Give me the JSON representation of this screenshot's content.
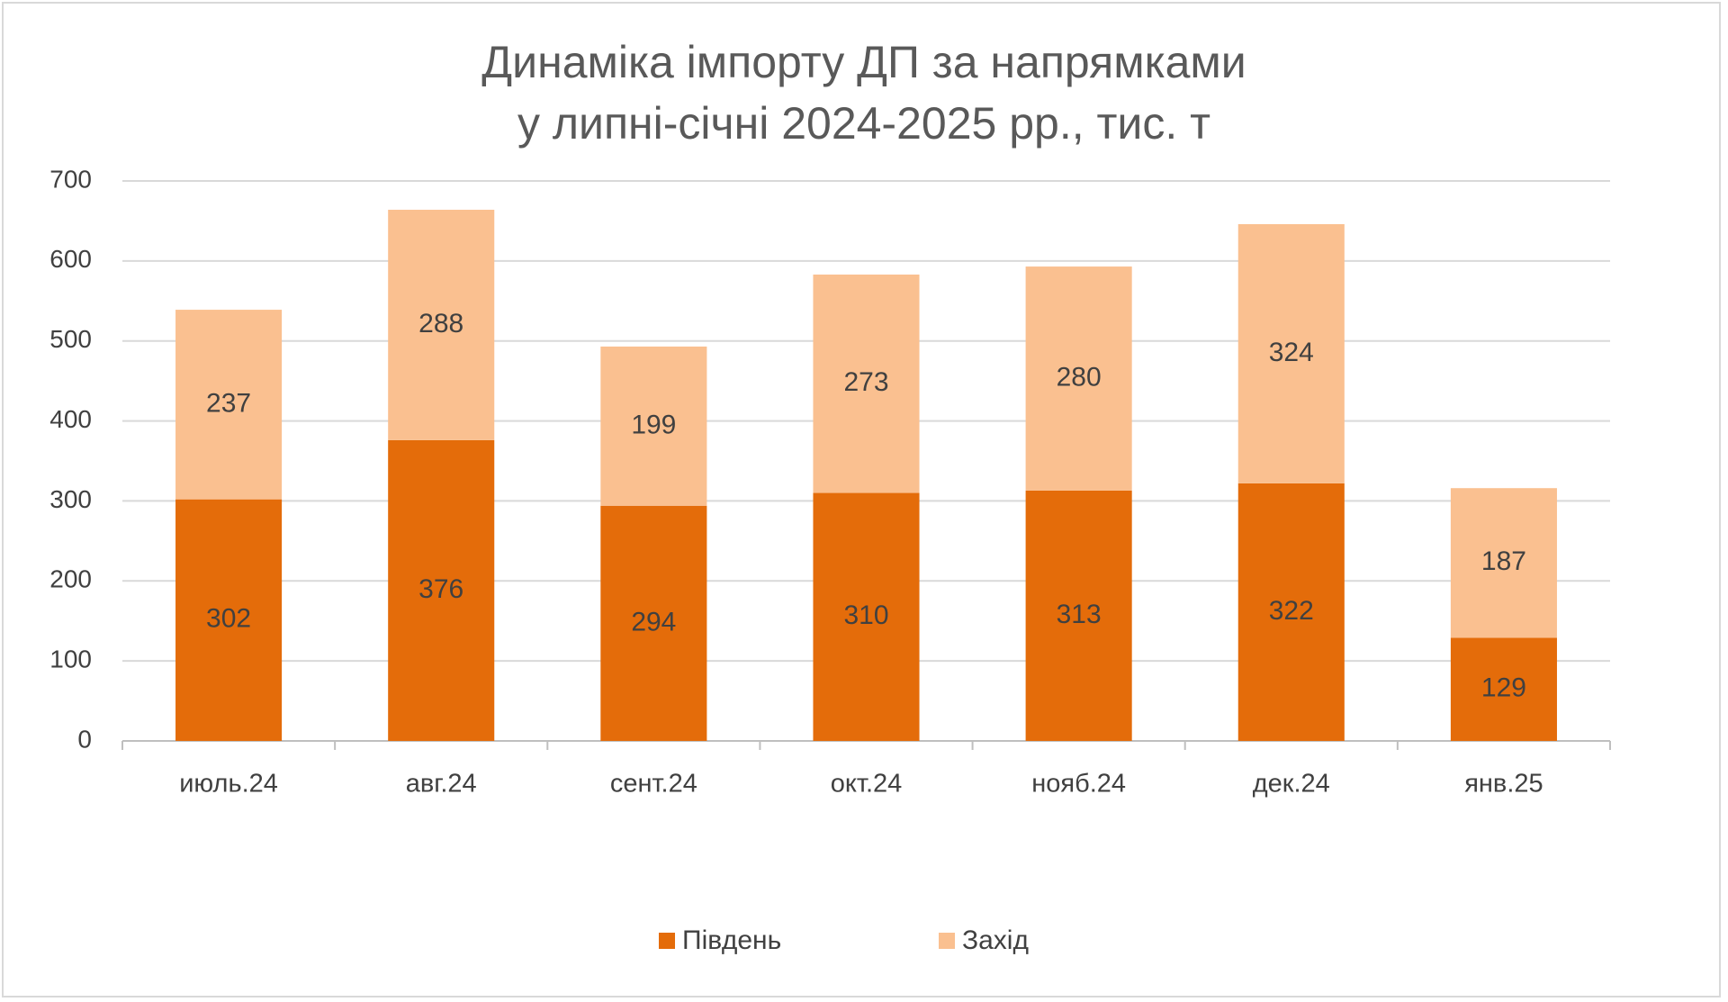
{
  "chart_data": {
    "type": "stacked-bar",
    "title": [
      "Динаміка імпорту ДП за напрямками",
      "у липні-січні 2024-2025 рр., тис. т"
    ],
    "categories": [
      "июль.24",
      "авг.24",
      "сент.24",
      "окт.24",
      "нояб.24",
      "дек.24",
      "янв.25"
    ],
    "series": [
      {
        "name": "Південь",
        "color": "#e46c0a",
        "values": [
          302,
          376,
          294,
          310,
          313,
          322,
          129
        ]
      },
      {
        "name": "Захід",
        "color": "#fac090",
        "values": [
          237,
          288,
          199,
          273,
          280,
          324,
          187
        ]
      }
    ],
    "ylim": [
      0,
      700
    ],
    "yticks": [
      0,
      100,
      200,
      300,
      400,
      500,
      600,
      700
    ],
    "grid": true,
    "legend": "bottom"
  }
}
